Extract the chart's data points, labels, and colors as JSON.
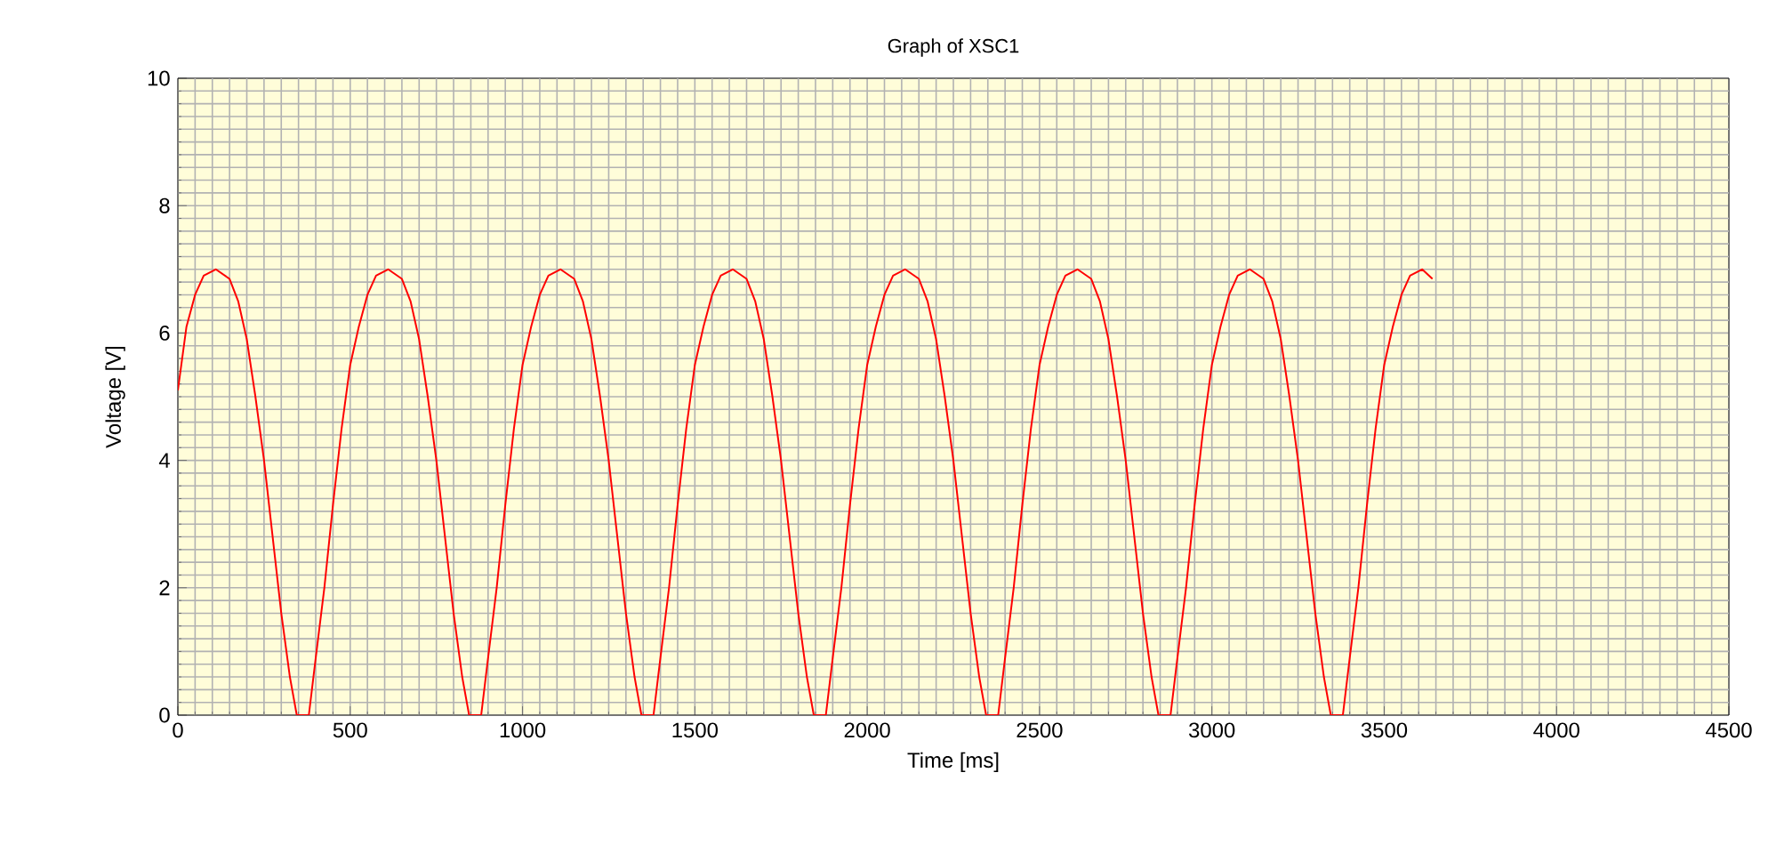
{
  "chart_data": {
    "type": "line",
    "title": "Graph of XSC1",
    "xlabel": "Time [ms]",
    "ylabel": "Voltage [V]",
    "x": [
      0,
      25,
      50,
      75,
      110,
      150,
      175,
      200,
      225,
      250,
      275,
      300,
      325,
      345,
      380,
      400,
      425,
      450,
      475,
      500,
      525,
      550,
      575,
      610,
      650,
      675,
      700,
      725,
      750,
      775,
      800,
      825,
      845,
      880,
      900,
      925,
      950,
      975,
      1000,
      1025,
      1050,
      1075,
      1110,
      1150,
      1175,
      1200,
      1225,
      1250,
      1275,
      1300,
      1325,
      1345,
      1380,
      1400,
      1425,
      1450,
      1475,
      1500,
      1525,
      1550,
      1575,
      1610,
      1650,
      1675,
      1700,
      1725,
      1750,
      1775,
      1800,
      1825,
      1845,
      1880,
      1900,
      1925,
      1950,
      1975,
      2000,
      2025,
      2050,
      2075,
      2110,
      2150,
      2175,
      2200,
      2225,
      2250,
      2275,
      2300,
      2325,
      2345,
      2380,
      2400,
      2425,
      2450,
      2475,
      2500,
      2525,
      2550,
      2575,
      2610,
      2650,
      2675,
      2700,
      2725,
      2750,
      2775,
      2800,
      2825,
      2845,
      2880,
      2900,
      2925,
      2950,
      2975,
      3000,
      3025,
      3050,
      3075,
      3110,
      3150,
      3175,
      3200,
      3225,
      3250,
      3275,
      3300,
      3325,
      3345,
      3380,
      3400,
      3425,
      3450,
      3475,
      3500,
      3525,
      3550,
      3575,
      3610,
      3640
    ],
    "series": [
      {
        "color": "#ff0000",
        "values": [
          5.1,
          6.1,
          6.6,
          6.9,
          7.0,
          6.85,
          6.5,
          5.9,
          5.0,
          4.0,
          2.8,
          1.6,
          0.6,
          0,
          0,
          0.9,
          2.0,
          3.3,
          4.5,
          5.5,
          6.1,
          6.6,
          6.9,
          7.0,
          6.85,
          6.5,
          5.9,
          5.0,
          4.0,
          2.8,
          1.6,
          0.6,
          0,
          0,
          0.9,
          2.0,
          3.3,
          4.5,
          5.5,
          6.1,
          6.6,
          6.9,
          7.0,
          6.85,
          6.5,
          5.9,
          5.0,
          4.0,
          2.8,
          1.6,
          0.6,
          0,
          0,
          0.9,
          2.0,
          3.3,
          4.5,
          5.5,
          6.1,
          6.6,
          6.9,
          7.0,
          6.85,
          6.5,
          5.9,
          5.0,
          4.0,
          2.8,
          1.6,
          0.6,
          0,
          0,
          0.9,
          2.0,
          3.3,
          4.5,
          5.5,
          6.1,
          6.6,
          6.9,
          7.0,
          6.85,
          6.5,
          5.9,
          5.0,
          4.0,
          2.8,
          1.6,
          0.6,
          0,
          0,
          0.9,
          2.0,
          3.3,
          4.5,
          5.5,
          6.1,
          6.6,
          6.9,
          7.0,
          6.85,
          6.5,
          5.9,
          5.0,
          4.0,
          2.8,
          1.6,
          0.6,
          0,
          0,
          0.9,
          2.0,
          3.3,
          4.5,
          5.5,
          6.1,
          6.6,
          6.9,
          7.0,
          6.85,
          6.5,
          5.9,
          5.0,
          4.0,
          2.8,
          1.6,
          0.6,
          0,
          0,
          0.9,
          2.0,
          3.3,
          4.5,
          5.5,
          6.1,
          6.6,
          6.9,
          7.0,
          6.85
        ]
      }
    ],
    "xlim": [
      0,
      4500
    ],
    "ylim": [
      0,
      10
    ],
    "xticks": [
      0,
      {
        "value": 50,
        "label": null
      },
      {
        "value": 100,
        "label": null
      },
      {
        "value": 150,
        "label": null
      },
      {
        "value": 200,
        "label": null
      },
      {
        "value": 250,
        "label": null
      },
      {
        "value": 300,
        "label": null
      },
      {
        "value": 350,
        "label": null
      },
      {
        "value": 400,
        "label": null
      },
      {
        "value": 450,
        "label": null
      },
      500,
      {
        "value": 550,
        "label": null
      },
      {
        "value": 600,
        "label": null
      },
      {
        "value": 650,
        "label": null
      },
      {
        "value": 700,
        "label": null
      },
      {
        "value": 750,
        "label": null
      },
      {
        "value": 800,
        "label": null
      },
      {
        "value": 850,
        "label": null
      },
      {
        "value": 900,
        "label": null
      },
      {
        "value": 950,
        "label": null
      },
      1000,
      {
        "value": 1050,
        "label": null
      },
      {
        "value": 1100,
        "label": null
      },
      {
        "value": 1150,
        "label": null
      },
      {
        "value": 1200,
        "label": null
      },
      {
        "value": 1250,
        "label": null
      },
      {
        "value": 1300,
        "label": null
      },
      {
        "value": 1350,
        "label": null
      },
      {
        "value": 1400,
        "label": null
      },
      {
        "value": 1450,
        "label": null
      },
      1500,
      {
        "value": 1550,
        "label": null
      },
      {
        "value": 1600,
        "label": null
      },
      {
        "value": 1650,
        "label": null
      },
      {
        "value": 1700,
        "label": null
      },
      {
        "value": 1750,
        "label": null
      },
      {
        "value": 1800,
        "label": null
      },
      {
        "value": 1850,
        "label": null
      },
      {
        "value": 1900,
        "label": null
      },
      {
        "value": 1950,
        "label": null
      },
      2000,
      {
        "value": 2050,
        "label": null
      },
      {
        "value": 2100,
        "label": null
      },
      {
        "value": 2150,
        "label": null
      },
      {
        "value": 2200,
        "label": null
      },
      {
        "value": 2250,
        "label": null
      },
      {
        "value": 2300,
        "label": null
      },
      {
        "value": 2350,
        "label": null
      },
      {
        "value": 2400,
        "label": null
      },
      {
        "value": 2450,
        "label": null
      },
      2500,
      {
        "value": 2550,
        "label": null
      },
      {
        "value": 2600,
        "label": null
      },
      {
        "value": 2650,
        "label": null
      },
      {
        "value": 2700,
        "label": null
      },
      {
        "value": 2750,
        "label": null
      },
      {
        "value": 2800,
        "label": null
      },
      {
        "value": 2850,
        "label": null
      },
      {
        "value": 2900,
        "label": null
      },
      {
        "value": 2950,
        "label": null
      },
      3000,
      {
        "value": 3050,
        "label": null
      },
      {
        "value": 3100,
        "label": null
      },
      {
        "value": 3150,
        "label": null
      },
      {
        "value": 3200,
        "label": null
      },
      {
        "value": 3250,
        "label": null
      },
      {
        "value": 3300,
        "label": null
      },
      {
        "value": 3350,
        "label": null
      },
      {
        "value": 3400,
        "label": null
      },
      {
        "value": 3450,
        "label": null
      },
      3500,
      {
        "value": 3550,
        "label": null
      },
      {
        "value": 3600,
        "label": null
      },
      {
        "value": 3650,
        "label": null
      },
      {
        "value": 3700,
        "label": null
      },
      {
        "value": 3750,
        "label": null
      },
      {
        "value": 3800,
        "label": null
      },
      {
        "value": 3850,
        "label": null
      },
      {
        "value": 3900,
        "label": null
      },
      {
        "value": 3950,
        "label": null
      },
      4000,
      {
        "value": 4050,
        "label": null
      },
      {
        "value": 4100,
        "label": null
      },
      {
        "value": 4150,
        "label": null
      },
      {
        "value": 4200,
        "label": null
      },
      {
        "value": 4250,
        "label": null
      },
      {
        "value": 4300,
        "label": null
      },
      {
        "value": 4350,
        "label": null
      },
      {
        "value": 4400,
        "label": null
      },
      {
        "value": 4450,
        "label": null
      },
      4500
    ],
    "yticks": [
      0,
      {
        "value": 0.2,
        "label": null
      },
      {
        "value": 0.4,
        "label": null
      },
      {
        "value": 0.6,
        "label": null
      },
      {
        "value": 0.8,
        "label": null
      },
      {
        "value": 1,
        "label": null
      },
      {
        "value": 1.2,
        "label": null
      },
      {
        "value": 1.4,
        "label": null
      },
      {
        "value": 1.6,
        "label": null
      },
      {
        "value": 1.8,
        "label": null
      },
      2,
      {
        "value": 2.2,
        "label": null
      },
      {
        "value": 2.4,
        "label": null
      },
      {
        "value": 2.6,
        "label": null
      },
      {
        "value": 2.8,
        "label": null
      },
      {
        "value": 3,
        "label": null
      },
      {
        "value": 3.2,
        "label": null
      },
      {
        "value": 3.4,
        "label": null
      },
      {
        "value": 3.6,
        "label": null
      },
      {
        "value": 3.8,
        "label": null
      },
      4,
      {
        "value": 4.2,
        "label": null
      },
      {
        "value": 4.4,
        "label": null
      },
      {
        "value": 4.6,
        "label": null
      },
      {
        "value": 4.8,
        "label": null
      },
      {
        "value": 5,
        "label": null
      },
      {
        "value": 5.2,
        "label": null
      },
      {
        "value": 5.4,
        "label": null
      },
      {
        "value": 5.6,
        "label": null
      },
      {
        "value": 5.8,
        "label": null
      },
      6,
      {
        "value": 6.2,
        "label": null
      },
      {
        "value": 6.4,
        "label": null
      },
      {
        "value": 6.6,
        "label": null
      },
      {
        "value": 6.8,
        "label": null
      },
      {
        "value": 7,
        "label": null
      },
      {
        "value": 7.2,
        "label": null
      },
      {
        "value": 7.4,
        "label": null
      },
      {
        "value": 7.6,
        "label": null
      },
      {
        "value": 7.8,
        "label": null
      },
      8,
      {
        "value": 8.2,
        "label": null
      },
      {
        "value": 8.4,
        "label": null
      },
      {
        "value": 8.6,
        "label": null
      },
      {
        "value": 8.8,
        "label": null
      },
      {
        "value": 9,
        "label": null
      },
      {
        "value": 9.2,
        "label": null
      },
      {
        "value": 9.4,
        "label": null
      },
      {
        "value": 9.6,
        "label": null
      },
      {
        "value": 9.8,
        "label": null
      },
      10
    ],
    "grid": true,
    "line_style": "solid",
    "marker": "none"
  }
}
